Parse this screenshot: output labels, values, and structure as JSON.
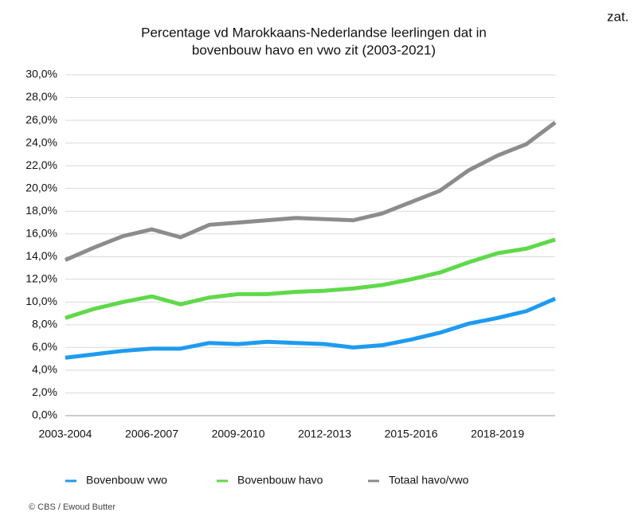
{
  "chart_data": {
    "type": "line",
    "title": "Percentage vd Marokkaans-Nederlandse leerlingen dat in",
    "subtitle": "bovenbouw havo en vwo zit (2003-2021)",
    "note": "zat.",
    "source": "© CBS / Ewoud Butter",
    "categories": [
      "2003-2004",
      null,
      null,
      "2006-2007",
      null,
      null,
      "2009-2010",
      null,
      null,
      "2012-2013",
      null,
      null,
      "2015-2016",
      null,
      null,
      "2018-2019",
      null,
      null
    ],
    "series": [
      {
        "name": "Bovenbouw vwo",
        "color": "#1e9bf0",
        "values": [
          5.1,
          5.4,
          5.7,
          5.9,
          5.9,
          6.4,
          6.3,
          6.5,
          6.4,
          6.3,
          6.0,
          6.2,
          6.7,
          7.3,
          8.1,
          8.6,
          9.2,
          10.3
        ]
      },
      {
        "name": "Bovenbouw havo",
        "color": "#5fd94a",
        "values": [
          8.6,
          9.4,
          10.0,
          10.5,
          9.8,
          10.4,
          10.7,
          10.7,
          10.9,
          11.0,
          11.2,
          11.5,
          12.0,
          12.6,
          13.5,
          14.3,
          14.7,
          15.5
        ]
      },
      {
        "name": "Totaal havo/vwo",
        "color": "#8c8c8c",
        "values": [
          13.7,
          14.8,
          15.8,
          16.4,
          15.7,
          16.8,
          17.0,
          17.2,
          17.4,
          17.3,
          17.2,
          17.8,
          18.8,
          19.8,
          21.6,
          22.9,
          23.9,
          25.8
        ]
      }
    ],
    "ylim": [
      0,
      30
    ],
    "yticks": [
      {
        "value": 0,
        "label": "0,0%"
      },
      {
        "value": 2,
        "label": "2,0%"
      },
      {
        "value": 4,
        "label": "4,0%"
      },
      {
        "value": 6,
        "label": "6,0%"
      },
      {
        "value": 8,
        "label": "8,0%"
      },
      {
        "value": 10,
        "label": "10,0%"
      },
      {
        "value": 12,
        "label": "12,0%"
      },
      {
        "value": 14,
        "label": "14,0%"
      },
      {
        "value": 16,
        "label": "16,0%"
      },
      {
        "value": 18,
        "label": "18,0%"
      },
      {
        "value": 20,
        "label": "20,0%"
      },
      {
        "value": 22,
        "label": "22,0%"
      },
      {
        "value": 24,
        "label": "24,0%"
      },
      {
        "value": 26,
        "label": "26,0%"
      },
      {
        "value": 28,
        "label": "28,0%"
      },
      {
        "value": 30,
        "label": "30,0%"
      }
    ],
    "grid": true
  }
}
